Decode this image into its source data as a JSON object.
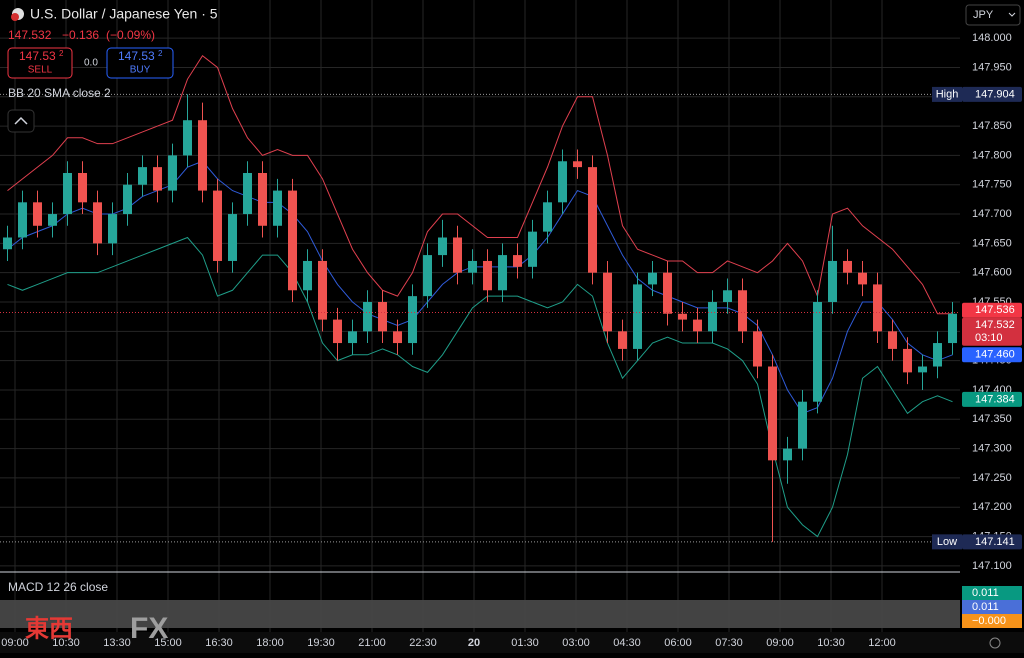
{
  "header": {
    "symbol": "U.S. Dollar / Japanese Yen · 5",
    "last": "147.532",
    "change": "−0.136",
    "change_pct": "(−0.09%)",
    "sell": {
      "price": "147.53",
      "pip": "2",
      "label": "SELL"
    },
    "spread": "0.0",
    "buy": {
      "price": "147.53",
      "pip": "2",
      "label": "BUY"
    },
    "indicator": "BB 20 SMA close 2",
    "currency": "JPY"
  },
  "chart_data": {
    "type": "candlestick",
    "xticks": [
      "09:00",
      "10:30",
      "13:30",
      "15:00",
      "16:30",
      "18:00",
      "19:30",
      "21:00",
      "22:30",
      "20",
      "01:30",
      "03:00",
      "04:30",
      "06:00",
      "07:30",
      "09:00",
      "10:30",
      "12:00"
    ],
    "open": [
      147.64,
      147.66,
      147.72,
      147.68,
      147.7,
      147.77,
      147.72,
      147.65,
      147.7,
      147.75,
      147.78,
      147.74,
      147.8,
      147.86,
      147.74,
      147.62,
      147.7,
      147.77,
      147.68,
      147.74,
      147.57,
      147.62,
      147.52,
      147.48,
      147.5,
      147.55,
      147.5,
      147.48,
      147.56,
      147.63,
      147.66,
      147.6,
      147.62,
      147.57,
      147.63,
      147.61,
      147.67,
      147.72,
      147.79,
      147.78,
      147.6,
      147.5,
      147.47,
      147.58,
      147.6,
      147.53,
      147.52,
      147.5,
      147.55,
      147.57,
      147.5,
      147.44,
      147.28,
      147.3,
      147.38,
      147.55,
      147.62,
      147.6,
      147.58,
      147.5,
      147.47,
      147.43,
      147.44,
      147.48
    ],
    "high": [
      147.68,
      147.74,
      147.74,
      147.72,
      147.79,
      147.79,
      147.74,
      147.72,
      147.77,
      147.8,
      147.8,
      147.82,
      147.904,
      147.89,
      147.76,
      147.72,
      147.79,
      147.79,
      147.76,
      147.76,
      147.64,
      147.64,
      147.54,
      147.52,
      147.57,
      147.57,
      147.52,
      147.58,
      147.65,
      147.69,
      147.68,
      147.64,
      147.64,
      147.65,
      147.65,
      147.69,
      147.74,
      147.81,
      147.81,
      147.8,
      147.62,
      147.52,
      147.6,
      147.62,
      147.62,
      147.55,
      147.54,
      147.57,
      147.59,
      147.59,
      147.52,
      147.46,
      147.32,
      147.4,
      147.57,
      147.68,
      147.64,
      147.62,
      147.6,
      147.52,
      147.49,
      147.46,
      147.5,
      147.55
    ],
    "low": [
      147.62,
      147.64,
      147.66,
      147.66,
      147.68,
      147.7,
      147.63,
      147.63,
      147.68,
      147.73,
      147.72,
      147.72,
      147.78,
      147.72,
      147.6,
      147.6,
      147.68,
      147.66,
      147.66,
      147.55,
      147.55,
      147.5,
      147.45,
      147.46,
      147.48,
      147.48,
      147.46,
      147.46,
      147.54,
      147.61,
      147.58,
      147.58,
      147.55,
      147.55,
      147.59,
      147.59,
      147.65,
      147.7,
      147.76,
      147.58,
      147.48,
      147.45,
      147.45,
      147.56,
      147.51,
      147.5,
      147.48,
      147.48,
      147.53,
      147.48,
      147.42,
      147.141,
      147.24,
      147.28,
      147.36,
      147.53,
      147.58,
      147.56,
      147.48,
      147.45,
      147.41,
      147.4,
      147.42,
      147.46
    ],
    "close": [
      147.66,
      147.72,
      147.68,
      147.7,
      147.77,
      147.72,
      147.65,
      147.7,
      147.75,
      147.78,
      147.74,
      147.8,
      147.86,
      147.74,
      147.62,
      147.7,
      147.77,
      147.68,
      147.74,
      147.57,
      147.62,
      147.52,
      147.48,
      147.5,
      147.55,
      147.5,
      147.48,
      147.56,
      147.63,
      147.66,
      147.6,
      147.62,
      147.57,
      147.63,
      147.61,
      147.67,
      147.72,
      147.79,
      147.78,
      147.6,
      147.5,
      147.47,
      147.58,
      147.6,
      147.53,
      147.52,
      147.5,
      147.55,
      147.57,
      147.5,
      147.44,
      147.28,
      147.3,
      147.38,
      147.55,
      147.62,
      147.6,
      147.58,
      147.5,
      147.47,
      147.43,
      147.44,
      147.48,
      147.53
    ],
    "up_color": "#26a69a",
    "down_color": "#ef5350",
    "series": [
      {
        "name": "Upper",
        "color": "#e0404f",
        "values": [
          147.74,
          147.76,
          147.78,
          147.8,
          147.83,
          147.83,
          147.82,
          147.82,
          147.83,
          147.84,
          147.85,
          147.86,
          147.93,
          147.97,
          147.95,
          147.88,
          147.83,
          147.8,
          147.81,
          147.8,
          147.8,
          147.76,
          147.7,
          147.64,
          147.6,
          147.57,
          147.56,
          147.6,
          147.67,
          147.7,
          147.7,
          147.68,
          147.66,
          147.66,
          147.66,
          147.72,
          147.78,
          147.85,
          147.9,
          147.9,
          147.8,
          147.68,
          147.64,
          147.63,
          147.62,
          147.62,
          147.6,
          147.6,
          147.62,
          147.61,
          147.6,
          147.62,
          147.65,
          147.62,
          147.56,
          147.7,
          147.71,
          147.68,
          147.66,
          147.64,
          147.61,
          147.58,
          147.53,
          147.53
        ]
      },
      {
        "name": "Basis",
        "color": "#2f5bd8",
        "values": [
          147.64,
          147.66,
          147.67,
          147.68,
          147.7,
          147.71,
          147.7,
          147.7,
          147.71,
          147.73,
          147.74,
          147.75,
          147.78,
          147.79,
          147.76,
          147.74,
          147.73,
          147.72,
          147.72,
          147.7,
          147.67,
          147.62,
          147.58,
          147.55,
          147.53,
          147.52,
          147.51,
          147.52,
          147.55,
          147.58,
          147.6,
          147.61,
          147.61,
          147.61,
          147.61,
          147.63,
          147.66,
          147.7,
          147.74,
          147.73,
          147.68,
          147.63,
          147.59,
          147.57,
          147.56,
          147.55,
          147.54,
          147.54,
          147.54,
          147.53,
          147.51,
          147.46,
          147.4,
          147.36,
          147.37,
          147.42,
          147.5,
          147.55,
          147.55,
          147.52,
          147.48,
          147.46,
          147.45,
          147.46
        ]
      },
      {
        "name": "Lower",
        "color": "#1f9e89",
        "values": [
          147.58,
          147.57,
          147.58,
          147.59,
          147.6,
          147.6,
          147.6,
          147.61,
          147.62,
          147.63,
          147.64,
          147.65,
          147.66,
          147.63,
          147.56,
          147.57,
          147.6,
          147.63,
          147.63,
          147.6,
          147.55,
          147.48,
          147.45,
          147.46,
          147.46,
          147.47,
          147.46,
          147.44,
          147.43,
          147.46,
          147.5,
          147.54,
          147.56,
          147.56,
          147.56,
          147.55,
          147.54,
          147.55,
          147.58,
          147.56,
          147.48,
          147.42,
          147.45,
          147.48,
          147.49,
          147.48,
          147.48,
          147.48,
          147.47,
          147.45,
          147.41,
          147.3,
          147.2,
          147.17,
          147.15,
          147.2,
          147.29,
          147.42,
          147.44,
          147.4,
          147.36,
          147.38,
          147.39,
          147.38
        ]
      }
    ],
    "ylim": [
      147.093,
      148.065
    ],
    "yticks": [
      {
        "value": 148.0,
        "label": "148.000"
      },
      {
        "value": 147.95,
        "label": "147.950"
      },
      {
        "value": 147.9,
        "label": "147.900"
      },
      {
        "value": 147.85,
        "label": "147.850"
      },
      {
        "value": 147.8,
        "label": "147.800"
      },
      {
        "value": 147.75,
        "label": "147.750"
      },
      {
        "value": 147.7,
        "label": "147.700"
      },
      {
        "value": 147.65,
        "label": "147.650"
      },
      {
        "value": 147.6,
        "label": "147.600"
      },
      {
        "value": 147.55,
        "label": "147.550"
      },
      {
        "value": 147.5,
        "label": "147.500"
      },
      {
        "value": 147.45,
        "label": "147.450"
      },
      {
        "value": 147.4,
        "label": "147.400"
      },
      {
        "value": 147.35,
        "label": "147.350"
      },
      {
        "value": 147.3,
        "label": "147.300"
      },
      {
        "value": 147.25,
        "label": "147.250"
      },
      {
        "value": 147.2,
        "label": "147.200"
      },
      {
        "value": 147.15,
        "label": "147.150"
      },
      {
        "value": 147.1,
        "label": "147.100"
      }
    ],
    "grid": true,
    "price_labels": [
      {
        "name": "High",
        "value": 147.904,
        "label": "147.904",
        "color": "#1e2a55"
      },
      {
        "value": 147.536,
        "label": "147.536",
        "color": "#f23645"
      },
      {
        "value": 147.532,
        "label": "147.532",
        "color": "#d3303f",
        "countdown": "03:10"
      },
      {
        "value": 147.46,
        "label": "147.460",
        "color": "#2962ff"
      },
      {
        "value": 147.384,
        "label": "147.384",
        "color": "#089981"
      },
      {
        "name": "Low",
        "value": 147.141,
        "label": "147.141",
        "color": "#1e2a55"
      }
    ],
    "macd": {
      "title": "MACD 12 26 close",
      "values": [
        0.011,
        0.011,
        0
      ],
      "value_labels": [
        "0.011",
        "0.011",
        "−0.000"
      ],
      "colors": [
        "#089981",
        "#4a6fd8",
        "#f7931a"
      ]
    }
  },
  "watermark": {
    "left": "東西",
    "right": "FX"
  }
}
